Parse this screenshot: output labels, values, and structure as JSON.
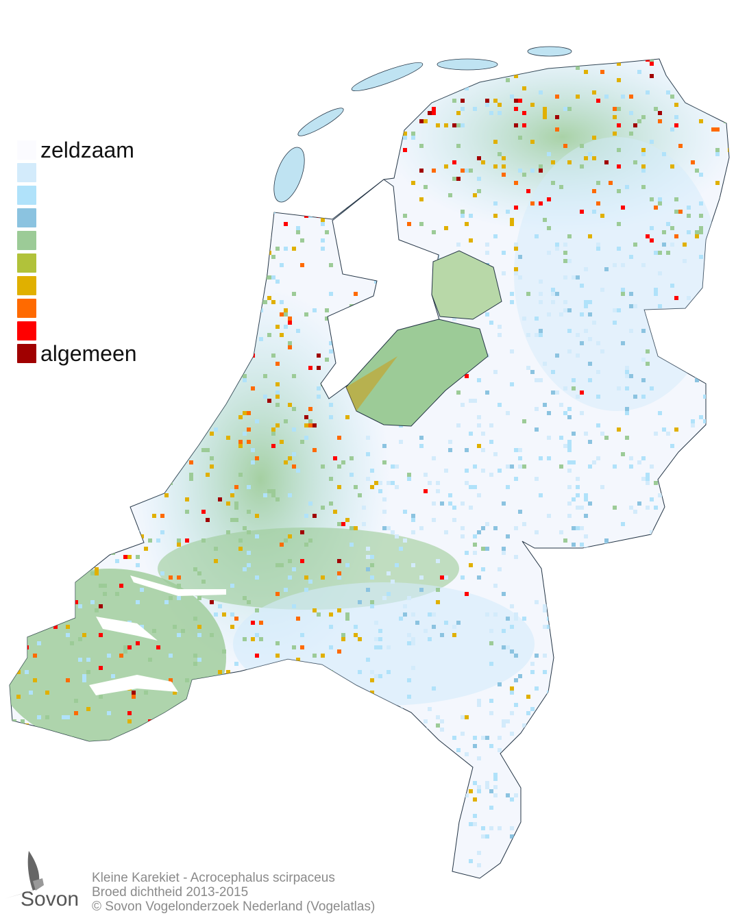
{
  "legend": {
    "items": [
      {
        "label": "zeldzaam",
        "color": "#fbfbff"
      },
      {
        "label": "",
        "color": "#d3ebfb"
      },
      {
        "label": "",
        "color": "#b0e2fa"
      },
      {
        "label": "",
        "color": "#8bc3e0"
      },
      {
        "label": "",
        "color": "#9ccb97"
      },
      {
        "label": "",
        "color": "#b1c23a"
      },
      {
        "label": "",
        "color": "#e0b000"
      },
      {
        "label": "",
        "color": "#ff6a00"
      },
      {
        "label": "",
        "color": "#ff0000"
      },
      {
        "label": "algemeen",
        "color": "#a00000"
      }
    ]
  },
  "footer": {
    "species": "Kleine Karekiet - Acrocephalus scirpaceus",
    "subtitle": "Broed dichtheid 2013-2015",
    "copyright": "© Sovon Vogelonderzoek Nederland (Vogelatlas)"
  },
  "logo": {
    "text": "Sovon",
    "icon": "swallow-icon"
  }
}
